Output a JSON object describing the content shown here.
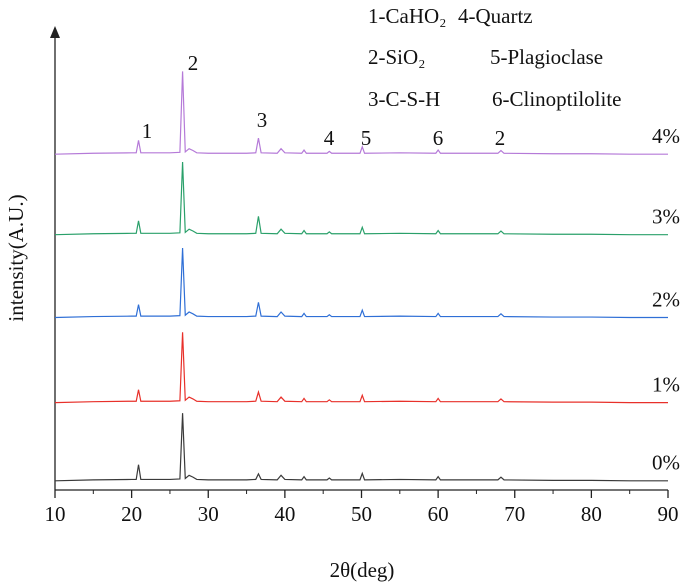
{
  "chart_data": {
    "type": "line",
    "xlabel": "2θ(deg)",
    "ylabel": "intensity(A.U.)",
    "x": [
      10,
      15,
      20,
      20.6,
      20.9,
      21.2,
      25,
      26.3,
      26.65,
      27,
      27.5,
      28,
      28.5,
      30,
      35,
      36.2,
      36.55,
      36.9,
      39,
      39.5,
      40,
      42.2,
      42.5,
      42.8,
      45.5,
      45.8,
      46.1,
      49.8,
      50.1,
      50.4,
      55,
      59.7,
      60,
      60.3,
      67.8,
      68.2,
      68.6,
      75,
      80,
      85,
      90
    ],
    "xlim": [
      10,
      90
    ],
    "xticks": [
      10,
      20,
      30,
      40,
      50,
      60,
      70,
      80,
      90
    ],
    "ylim": [
      0,
      100
    ],
    "series": [
      {
        "name": "0%",
        "color": "#3a3a3a",
        "values": [
          2,
          2.2,
          2.3,
          2.3,
          5.5,
          2.3,
          2.3,
          2.4,
          16.7,
          2.5,
          3.2,
          2.8,
          2.3,
          2.2,
          2.2,
          2.3,
          3.5,
          2.3,
          2.2,
          3.2,
          2.3,
          2.2,
          2.9,
          2.2,
          2.2,
          2.6,
          2.2,
          2.2,
          3.6,
          2.2,
          2.3,
          2.2,
          2.9,
          2.2,
          2.2,
          2.8,
          2.2,
          2.1,
          2.1,
          2,
          2
        ]
      },
      {
        "name": "1%",
        "color": "#e8302a",
        "values": [
          19,
          19.2,
          19.3,
          19.3,
          21.8,
          19.3,
          19.3,
          19.4,
          34.3,
          19.5,
          20.2,
          19.8,
          19.3,
          19.2,
          19.2,
          19.3,
          21.3,
          19.3,
          19.2,
          20.2,
          19.3,
          19.2,
          19.9,
          19.2,
          19.2,
          19.6,
          19.2,
          19.2,
          20.6,
          19.2,
          19.3,
          19.2,
          19.9,
          19.2,
          19.2,
          19.8,
          19.2,
          19.1,
          19.1,
          19,
          19
        ]
      },
      {
        "name": "2%",
        "color": "#2f6fd6",
        "values": [
          37.5,
          37.7,
          37.8,
          37.8,
          40.3,
          37.8,
          37.8,
          37.9,
          52.6,
          38,
          38.7,
          38.3,
          37.8,
          37.7,
          37.7,
          37.8,
          40.8,
          37.8,
          37.7,
          38.7,
          37.8,
          37.7,
          38.4,
          37.7,
          37.7,
          38.1,
          37.7,
          37.7,
          39.1,
          37.7,
          37.8,
          37.7,
          38.4,
          37.7,
          37.7,
          38.3,
          37.7,
          37.6,
          37.6,
          37.5,
          37.5
        ]
      },
      {
        "name": "3%",
        "color": "#2aa06a",
        "values": [
          55.5,
          55.7,
          55.8,
          55.8,
          58.5,
          55.8,
          55.8,
          55.9,
          71.3,
          56,
          56.7,
          56.3,
          55.8,
          55.7,
          55.7,
          55.8,
          59.5,
          55.8,
          55.7,
          56.7,
          55.8,
          55.7,
          56.4,
          55.7,
          55.7,
          56.1,
          55.7,
          55.7,
          57.1,
          55.7,
          55.8,
          55.7,
          56.4,
          55.7,
          55.7,
          56.3,
          55.7,
          55.6,
          55.6,
          55.5,
          55.5
        ]
      },
      {
        "name": "4%",
        "color": "#b57ad8",
        "values": [
          73,
          73.2,
          73.3,
          73.3,
          76,
          73.3,
          73.3,
          73.4,
          91,
          73.5,
          74.2,
          73.8,
          73.3,
          73.2,
          73.2,
          73.3,
          76.5,
          73.3,
          73.2,
          74.2,
          73.3,
          73.2,
          73.9,
          73.2,
          73.2,
          73.6,
          73.2,
          73.2,
          74.6,
          73.2,
          73.3,
          73.2,
          73.9,
          73.2,
          73.2,
          73.8,
          73.2,
          73.1,
          73.1,
          73,
          73
        ]
      }
    ],
    "peak_labels": [
      "1",
      "2",
      "3",
      "4",
      "5",
      "6",
      "2"
    ],
    "legend_text": [
      "1-CaHO₂",
      "4-Quartz",
      "2-SiO₂",
      "5-Plagioclase",
      "3-C-S-H",
      "6-Clinoptilolite"
    ]
  }
}
